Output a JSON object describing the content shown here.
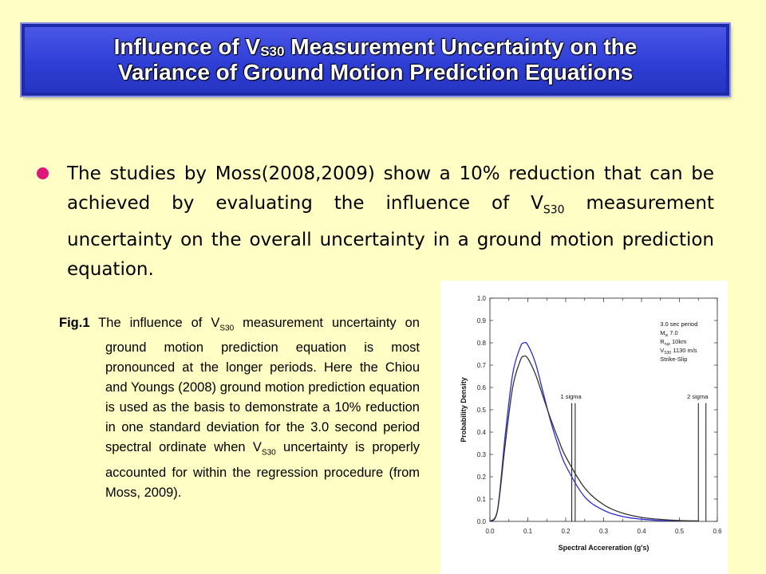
{
  "title": {
    "line1_pre": "Influence of V",
    "line1_sub": "S30",
    "line1_post": " Measurement Uncertainty on the",
    "line2": "Variance of Ground Motion Prediction Equations"
  },
  "bullet": {
    "text_pre": "The studies by Moss(2008,2009) show a 10% reduction that can be achieved by evaluating the influence of V",
    "text_sub": "S30",
    "text_post": " measurement uncertainty on the overall uncertainty in a ground motion prediction equation."
  },
  "caption": {
    "label": "Fig.1",
    "text_pre": " The influence of V",
    "text_sub1": "S30",
    "text_mid": " measurement uncertainty on ground motion prediction equation is most pronounced at the longer periods. Here the Chiou and Youngs (2008) ground motion prediction equation is used as the basis to demonstrate a 10% reduction in one standard deviation for the 3.0 second period spectral ordinate when V",
    "text_sub2": "S30",
    "text_post": " uncertainty is properly accounted for within the regression procedure (from Moss, 2009)."
  },
  "chart_data": {
    "type": "line",
    "xlabel": "Spectral Accereration (g's)",
    "ylabel": "Probability Density",
    "xlim": [
      0.0,
      0.6
    ],
    "ylim": [
      0.0,
      1.0
    ],
    "xticks": [
      "0.0",
      "0.05",
      "0.1",
      "0.15",
      "0.2",
      "0.25",
      "0.3",
      "0.35",
      "0.4",
      "0.45",
      "0.5",
      "0.55",
      "0.6"
    ],
    "yticks": [
      "0.0",
      "0.1",
      "0.2",
      "0.3",
      "0.4",
      "0.5",
      "0.6",
      "0.7",
      "0.8",
      "0.9",
      "1.0"
    ],
    "legend_lines": [
      {
        "text": "3.0 sec period"
      },
      {
        "pre": "M",
        "sub": "w",
        "post": " 7.0"
      },
      {
        "pre": "R",
        "sub": "rup",
        "post": " 10km"
      },
      {
        "pre": "V",
        "sub": "S30",
        "post": " 1130 m/s"
      },
      {
        "text": "Strike-Slip"
      }
    ],
    "colors": {
      "series_black": "#333333",
      "series_blue": "#2b2bd6"
    },
    "series": [
      {
        "x": [
          0.0,
          0.02,
          0.04,
          0.06,
          0.08,
          0.09,
          0.1,
          0.12,
          0.14,
          0.16,
          0.18,
          0.2,
          0.25,
          0.3,
          0.35,
          0.4,
          0.45,
          0.5
        ],
        "y": [
          0.0,
          0.05,
          0.38,
          0.66,
          0.78,
          0.8,
          0.79,
          0.71,
          0.58,
          0.45,
          0.34,
          0.25,
          0.11,
          0.05,
          0.022,
          0.01,
          0.004,
          0.002
        ]
      },
      {
        "x": [
          0.0,
          0.02,
          0.04,
          0.06,
          0.08,
          0.09,
          0.1,
          0.12,
          0.14,
          0.16,
          0.18,
          0.2,
          0.25,
          0.3,
          0.35,
          0.4,
          0.45,
          0.5,
          0.55
        ],
        "y": [
          0.0,
          0.05,
          0.34,
          0.6,
          0.72,
          0.74,
          0.73,
          0.66,
          0.56,
          0.46,
          0.37,
          0.29,
          0.15,
          0.075,
          0.037,
          0.018,
          0.009,
          0.004,
          0.002
        ]
      }
    ],
    "markers": [
      {
        "label": "1 sigma",
        "x": [
          0.216,
          0.225
        ]
      },
      {
        "label": "2 sigma",
        "x": [
          0.55,
          0.57
        ]
      }
    ]
  }
}
